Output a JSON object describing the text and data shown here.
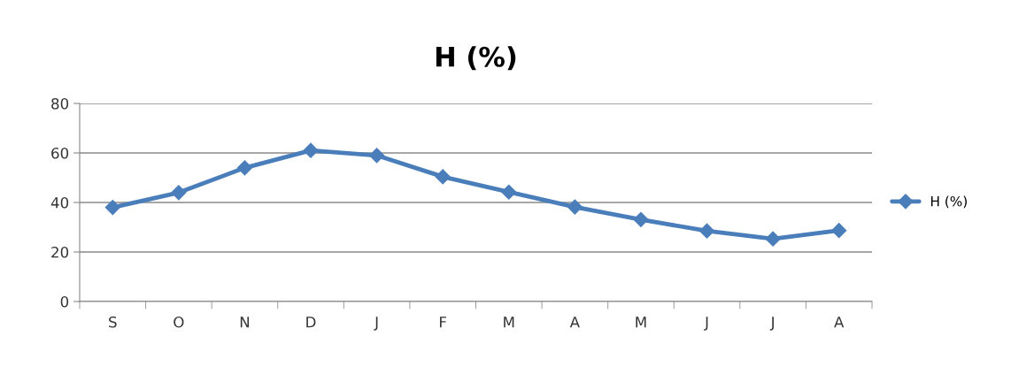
{
  "chart_data": {
    "type": "line",
    "title": "H (%)",
    "categories": [
      "S",
      "O",
      "N",
      "D",
      "J",
      "F",
      "M",
      "A",
      "M",
      "J",
      "J",
      "A"
    ],
    "series": [
      {
        "name": "H (%)",
        "color": "#4a7ebb",
        "values": [
          38,
          44,
          54,
          61,
          59,
          50.4,
          44.2,
          38.2,
          33.1,
          28.5,
          25.3,
          28.7
        ]
      }
    ],
    "ylim": [
      0,
      80
    ],
    "yticks": [
      0,
      20,
      40,
      60,
      80
    ],
    "grid": "y",
    "legend": "right",
    "marker": "diamond",
    "line_style": "solid"
  }
}
